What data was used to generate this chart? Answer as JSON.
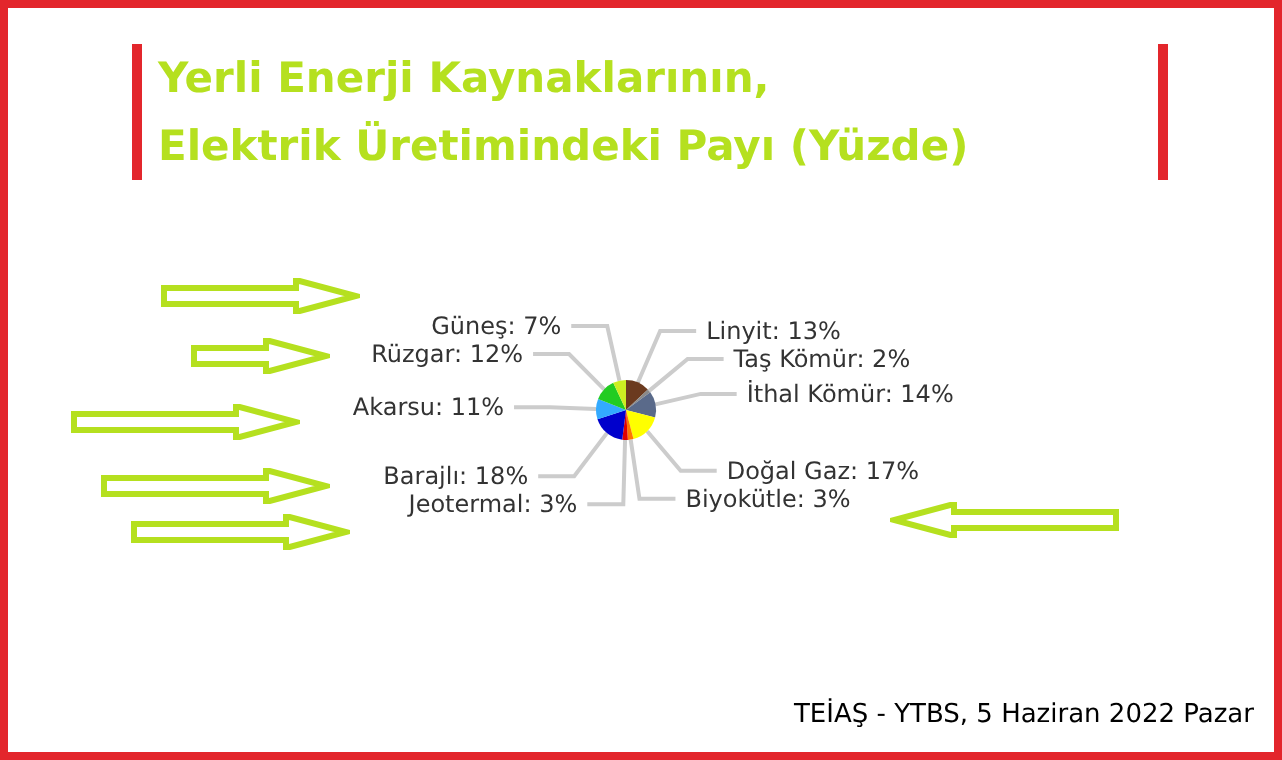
{
  "chart_data": {
    "type": "pie",
    "title": "Yerli Enerji Kaynaklarının,\nElektrik Üretimindeki Payı (Yüzde)",
    "categories": [
      "Linyit",
      "Taş Kömür",
      "İthal Kömür",
      "Doğal Gaz",
      "Biyokütle",
      "Jeotermal",
      "Barajlı",
      "Akarsu",
      "Rüzgar",
      "Güneş"
    ],
    "values": [
      13,
      2,
      14,
      17,
      3,
      3,
      18,
      11,
      12,
      7
    ],
    "value_labels": [
      "13%",
      "2%",
      "14%",
      "17%",
      "3%",
      "3%",
      "18%",
      "11%",
      "12%",
      "7%"
    ],
    "colors": [
      "#6b3a1f",
      "#8a8a8a",
      "#5a6a8a",
      "#ffff00",
      "#ff7700",
      "#e00000",
      "#0000cc",
      "#33aaff",
      "#22cc22",
      "#ccee22"
    ],
    "annotations": [
      "TEİAŞ - YTBS, 5 Haziran 2022 Pazar"
    ]
  }
}
